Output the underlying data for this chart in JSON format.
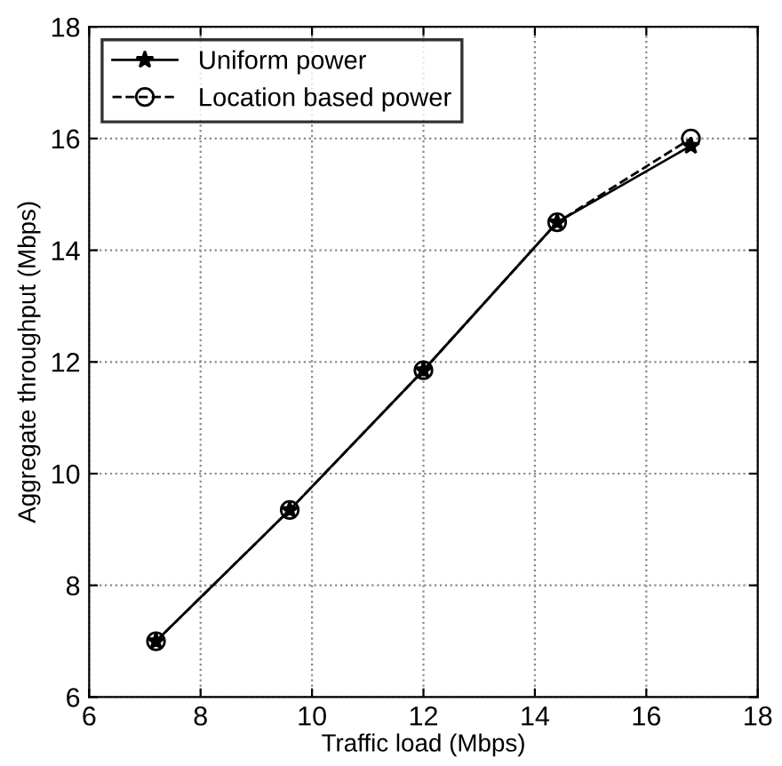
{
  "chart_data": {
    "type": "line",
    "xlabel": "Traffic load (Mbps)",
    "ylabel": "Aggregate throughput (Mbps)",
    "x": [
      7.2,
      9.6,
      12,
      14.4,
      16.8
    ],
    "series": [
      {
        "name": "Uniform power",
        "color": "#000000",
        "values": [
          7.0,
          9.35,
          11.85,
          14.5,
          15.87
        ],
        "marker": "star",
        "line_style": "solid"
      },
      {
        "name": "Location based power",
        "color": "#000000",
        "values": [
          7.0,
          9.35,
          11.85,
          14.5,
          16.0
        ],
        "marker": "circle",
        "line_style": "dashed"
      }
    ],
    "xlim": [
      6,
      18
    ],
    "xticks": [
      6,
      8,
      10,
      12,
      14,
      16,
      18
    ],
    "ylim": [
      6,
      18
    ],
    "yticks": [
      6,
      8,
      10,
      12,
      14,
      16,
      18
    ],
    "grid": true,
    "legend": "top left"
  }
}
